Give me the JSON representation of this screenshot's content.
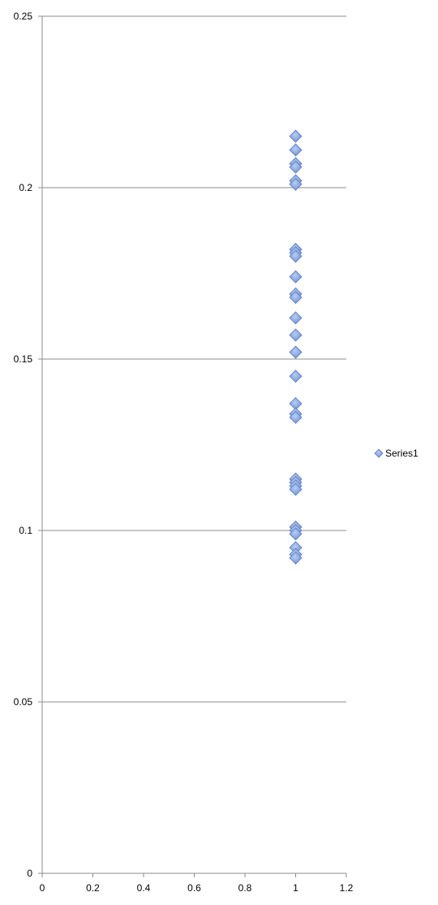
{
  "chart_data": {
    "type": "scatter",
    "title": "",
    "xlabel": "",
    "ylabel": "",
    "xlim": [
      0,
      1.2
    ],
    "ylim": [
      0,
      0.25
    ],
    "x_ticks": [
      "0",
      "0.2",
      "0.4",
      "0.6",
      "0.8",
      "1",
      "1.2"
    ],
    "y_ticks": [
      "0",
      "0.05",
      "0.1",
      "0.15",
      "0.2",
      "0.25"
    ],
    "grid": "horizontal",
    "legend": {
      "position": "right"
    },
    "marker": "diamond",
    "series": [
      {
        "name": "Series1",
        "color": "#7f9fd9",
        "points": [
          {
            "x": 1,
            "y": 0.215
          },
          {
            "x": 1,
            "y": 0.211
          },
          {
            "x": 1,
            "y": 0.207
          },
          {
            "x": 1,
            "y": 0.206
          },
          {
            "x": 1,
            "y": 0.202
          },
          {
            "x": 1,
            "y": 0.201
          },
          {
            "x": 1,
            "y": 0.182
          },
          {
            "x": 1,
            "y": 0.181
          },
          {
            "x": 1,
            "y": 0.18
          },
          {
            "x": 1,
            "y": 0.174
          },
          {
            "x": 1,
            "y": 0.169
          },
          {
            "x": 1,
            "y": 0.168
          },
          {
            "x": 1,
            "y": 0.162
          },
          {
            "x": 1,
            "y": 0.157
          },
          {
            "x": 1,
            "y": 0.152
          },
          {
            "x": 1,
            "y": 0.145
          },
          {
            "x": 1,
            "y": 0.137
          },
          {
            "x": 1,
            "y": 0.134
          },
          {
            "x": 1,
            "y": 0.133
          },
          {
            "x": 1,
            "y": 0.115
          },
          {
            "x": 1,
            "y": 0.114
          },
          {
            "x": 1,
            "y": 0.113
          },
          {
            "x": 1,
            "y": 0.112
          },
          {
            "x": 1,
            "y": 0.101
          },
          {
            "x": 1,
            "y": 0.1
          },
          {
            "x": 1,
            "y": 0.099
          },
          {
            "x": 1,
            "y": 0.095
          },
          {
            "x": 1,
            "y": 0.093
          },
          {
            "x": 1,
            "y": 0.092
          }
        ]
      }
    ]
  }
}
